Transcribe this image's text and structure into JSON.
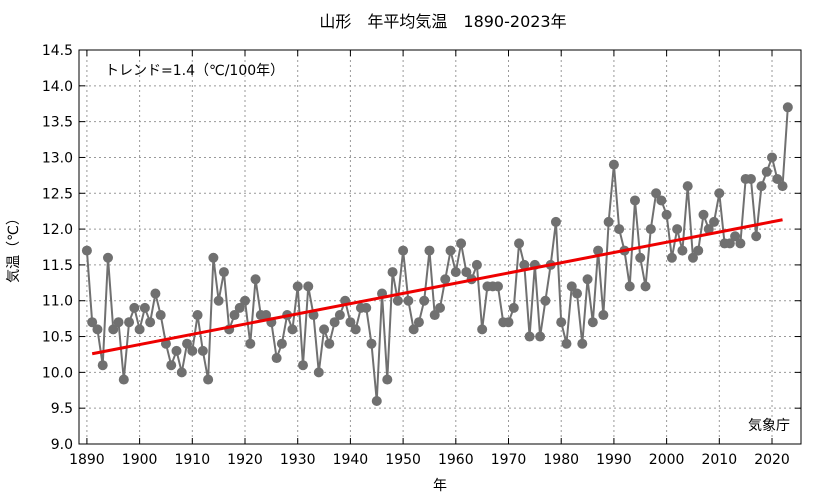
{
  "chart_data": {
    "type": "line",
    "title": "山形　年平均気温　1890-2023年",
    "xlabel": "年",
    "ylabel": "気温（℃）",
    "xlim": [
      1888.5,
      2025.5
    ],
    "ylim": [
      9.0,
      14.5
    ],
    "xticks": [
      1890,
      1900,
      1910,
      1920,
      1930,
      1940,
      1950,
      1960,
      1970,
      1980,
      1990,
      2000,
      2010,
      2020
    ],
    "yticks": [
      9.0,
      9.5,
      10.0,
      10.5,
      11.0,
      11.5,
      12.0,
      12.5,
      13.0,
      13.5,
      14.0,
      14.5
    ],
    "grid": true,
    "trend_label": "トレンド=1.4（℃/100年）",
    "source": "気象庁",
    "colors": {
      "series": "#707070",
      "trend": "#ee0000",
      "grid": "#999999"
    },
    "series": [
      {
        "name": "",
        "x_start": 1890,
        "values": [
          11.7,
          10.7,
          10.6,
          10.1,
          11.6,
          10.6,
          10.7,
          9.9,
          10.7,
          10.9,
          10.6,
          10.9,
          10.7,
          11.1,
          10.8,
          10.4,
          10.1,
          10.3,
          10.0,
          10.4,
          10.3,
          10.8,
          10.3,
          9.9,
          11.6,
          11.0,
          11.4,
          10.6,
          10.8,
          10.9,
          11.0,
          10.4,
          11.3,
          10.8,
          10.8,
          10.7,
          10.2,
          10.4,
          10.8,
          10.6,
          11.2,
          10.1,
          11.2,
          10.8,
          10.0,
          10.6,
          10.4,
          10.7,
          10.8,
          11.0,
          10.7,
          10.6,
          10.9,
          10.9,
          10.4,
          9.6,
          11.1,
          9.9,
          11.4,
          11.0,
          11.7,
          11.0,
          10.6,
          10.7,
          11.0,
          11.7,
          10.8,
          10.9,
          11.3,
          11.7,
          11.4,
          11.8,
          11.4,
          11.3,
          11.5,
          10.6,
          11.2,
          11.2,
          11.2,
          10.7,
          10.7,
          10.9,
          11.8,
          11.5,
          10.5,
          11.5,
          10.5,
          11.0,
          11.5,
          12.1,
          10.7,
          10.4,
          11.2,
          11.1,
          10.4,
          11.3,
          10.7,
          11.7,
          10.8,
          12.1,
          12.9,
          12.0,
          11.7,
          11.2,
          12.4,
          11.6,
          11.2,
          12.0,
          12.5,
          12.4,
          12.2,
          11.6,
          12.0,
          11.7,
          12.6,
          11.6,
          11.7,
          12.2,
          12.0,
          12.1,
          12.5,
          11.8,
          11.8,
          11.9,
          11.8,
          12.7,
          12.7,
          11.9,
          12.6,
          12.8,
          13.0,
          12.7,
          12.6,
          13.7
        ]
      }
    ],
    "trend": {
      "x": [
        1891,
        2022
      ],
      "y": [
        10.26,
        12.13
      ]
    }
  }
}
